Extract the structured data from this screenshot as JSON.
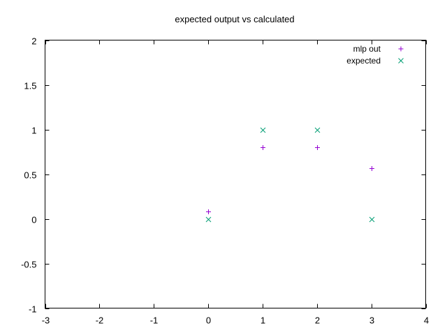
{
  "chart_data": {
    "type": "scatter",
    "title": "expected output vs calculated",
    "xlabel": "",
    "ylabel": "",
    "xlim": [
      -3,
      4
    ],
    "ylim": [
      -1,
      2
    ],
    "xticks": [
      -3,
      -2,
      -1,
      0,
      1,
      2,
      3,
      4
    ],
    "yticks": [
      -1,
      -0.5,
      0,
      0.5,
      1,
      1.5,
      2
    ],
    "xtick_labels": [
      "-3",
      "-2",
      "-1",
      "0",
      "1",
      "2",
      "3",
      "4"
    ],
    "ytick_labels": [
      "-1",
      "-0.5",
      "0",
      "0.5",
      "1",
      "1.5",
      "2"
    ],
    "grid": false,
    "legend_position": "top-right",
    "series": [
      {
        "name": "mlp out",
        "marker": "plus",
        "color": "#9400d3",
        "points": [
          {
            "x": 0,
            "y": 0.08
          },
          {
            "x": 1,
            "y": 0.8
          },
          {
            "x": 2,
            "y": 0.8
          },
          {
            "x": 3,
            "y": 0.57
          }
        ]
      },
      {
        "name": "expected",
        "marker": "cross",
        "color": "#009e73",
        "points": [
          {
            "x": 0,
            "y": 0
          },
          {
            "x": 1,
            "y": 1
          },
          {
            "x": 2,
            "y": 1
          },
          {
            "x": 3,
            "y": 0
          }
        ]
      }
    ]
  }
}
